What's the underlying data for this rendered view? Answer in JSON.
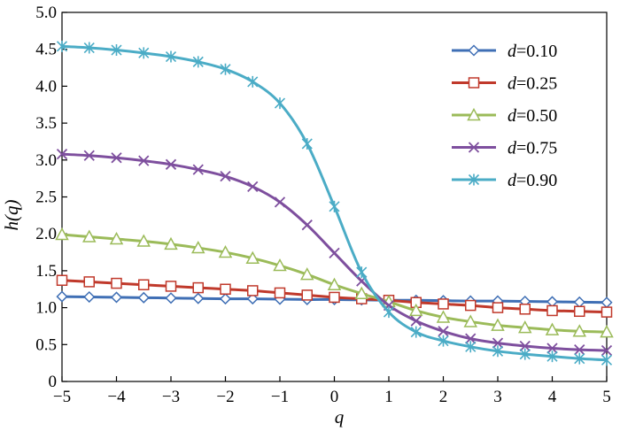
{
  "chart_data": {
    "type": "line",
    "title": "",
    "xlabel": "q",
    "ylabel": "h(q)",
    "xlim": [
      -5,
      5
    ],
    "ylim": [
      0,
      5.0
    ],
    "x_ticks": [
      "−5",
      "−4",
      "−3",
      "−2",
      "−1",
      "0",
      "1",
      "2",
      "3",
      "4",
      "5"
    ],
    "y_ticks": [
      "0",
      "0.5",
      "1.0",
      "1.5",
      "2.0",
      "2.5",
      "3.0",
      "3.5",
      "4.0",
      "4.5",
      "5.0"
    ],
    "grid": false,
    "legend_position": "top-right",
    "x": [
      -5,
      -4.5,
      -4,
      -3.5,
      -3,
      -2.5,
      -2,
      -1.5,
      -1,
      -0.5,
      0,
      0.5,
      1,
      1.5,
      2,
      2.5,
      3,
      3.5,
      4,
      4.5,
      5
    ],
    "series": [
      {
        "name": "d=0.10",
        "legend_var": "d",
        "legend_value": "=0.10",
        "color": "#3f6fb5",
        "marker": "diamond",
        "values": [
          1.15,
          1.145,
          1.14,
          1.135,
          1.13,
          1.125,
          1.12,
          1.12,
          1.115,
          1.11,
          1.11,
          1.105,
          1.1,
          1.1,
          1.095,
          1.09,
          1.09,
          1.085,
          1.08,
          1.075,
          1.07
        ]
      },
      {
        "name": "d=0.25",
        "legend_var": "d",
        "legend_value": "=0.25",
        "color": "#c0392b",
        "marker": "square",
        "values": [
          1.37,
          1.35,
          1.33,
          1.31,
          1.29,
          1.27,
          1.25,
          1.23,
          1.2,
          1.17,
          1.14,
          1.12,
          1.1,
          1.07,
          1.05,
          1.03,
          1.0,
          0.98,
          0.96,
          0.95,
          0.94
        ]
      },
      {
        "name": "d=0.50",
        "legend_var": "d",
        "legend_value": "=0.50",
        "color": "#9bbb59",
        "marker": "triangle",
        "values": [
          1.99,
          1.96,
          1.93,
          1.9,
          1.86,
          1.81,
          1.75,
          1.67,
          1.57,
          1.45,
          1.31,
          1.19,
          1.08,
          0.96,
          0.87,
          0.81,
          0.76,
          0.73,
          0.7,
          0.68,
          0.67
        ]
      },
      {
        "name": "d=0.75",
        "legend_var": "d",
        "legend_value": "=0.75",
        "color": "#7e4f9e",
        "marker": "x",
        "values": [
          3.08,
          3.06,
          3.03,
          2.99,
          2.94,
          2.87,
          2.78,
          2.64,
          2.43,
          2.12,
          1.74,
          1.36,
          1.03,
          0.82,
          0.68,
          0.58,
          0.52,
          0.48,
          0.45,
          0.43,
          0.42
        ]
      },
      {
        "name": "d=0.90",
        "legend_var": "d",
        "legend_value": "=0.90",
        "color": "#4bacc6",
        "marker": "asterisk",
        "values": [
          4.54,
          4.52,
          4.49,
          4.45,
          4.4,
          4.33,
          4.23,
          4.06,
          3.77,
          3.22,
          2.37,
          1.48,
          0.94,
          0.67,
          0.55,
          0.47,
          0.41,
          0.37,
          0.34,
          0.31,
          0.29
        ]
      }
    ]
  }
}
